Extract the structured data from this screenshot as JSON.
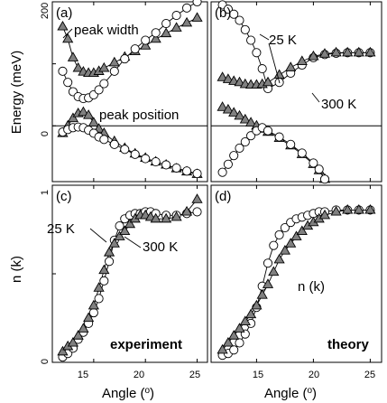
{
  "chart_data": [
    {
      "id": "a",
      "type": "scatter",
      "panel_label": "(a)",
      "ylabel": "Energy (meV)",
      "xlim": [
        11,
        26
      ],
      "ylim": [
        -90,
        200
      ],
      "yticks": [
        0,
        200
      ],
      "annotations": [
        "peak width",
        "peak position"
      ],
      "series": [
        {
          "marker": "triangle",
          "color": "#808080",
          "role": "width",
          "x": [
            12.0,
            12.5,
            13.0,
            13.5,
            14.0,
            14.5,
            15.0,
            15.5,
            16.0,
            17.0,
            18.0,
            19.0,
            20.0,
            21.0,
            22.0,
            23.0,
            24.0,
            25.0
          ],
          "y": [
            160,
            140,
            110,
            93,
            87,
            85,
            85,
            88,
            93,
            102,
            111,
            120,
            129,
            140,
            149,
            158,
            166,
            174
          ]
        },
        {
          "marker": "circle",
          "color": "#ffffff",
          "x": [
            12.0,
            12.5,
            13.0,
            13.5,
            14.0,
            14.5,
            15.0,
            15.5,
            16.0,
            17.0,
            18.0,
            19.0,
            20.0,
            21.0,
            22.0,
            23.0,
            24.0,
            25.0
          ],
          "y": [
            88,
            70,
            55,
            47,
            44,
            45,
            50,
            58,
            68,
            88,
            108,
            124,
            138,
            150,
            165,
            178,
            190,
            200
          ]
        },
        {
          "marker": "triangle",
          "color": "#808080",
          "role": "position",
          "x": [
            12.0,
            12.5,
            13.0,
            13.5,
            14.0,
            14.5,
            15.0,
            15.5,
            16.0,
            17.0,
            18.0,
            19.0,
            20.0,
            21.0,
            22.0,
            23.0,
            24.0,
            25.0
          ],
          "y": [
            -12,
            0,
            12,
            20,
            22,
            17,
            5,
            -5,
            -12,
            -25,
            -36,
            -45,
            -52,
            -58,
            -63,
            -69,
            -74,
            -78
          ]
        },
        {
          "marker": "circle",
          "color": "#ffffff",
          "x": [
            12.0,
            12.5,
            13.0,
            13.5,
            14.0,
            14.5,
            15.0,
            15.5,
            16.0,
            17.0,
            18.0,
            19.0,
            20.0,
            21.0,
            22.0,
            23.0,
            24.0,
            25.0
          ],
          "y": [
            -10,
            -6,
            -3,
            -2,
            -3,
            -7,
            -12,
            -18,
            -22,
            -30,
            -38,
            -46,
            -53,
            -58,
            -63,
            -68,
            -73,
            -77
          ]
        }
      ]
    },
    {
      "id": "b",
      "type": "scatter",
      "panel_label": "(b)",
      "xlim": [
        11,
        26
      ],
      "ylim": [
        -90,
        200
      ],
      "annotations": [
        "25 K",
        "300 K"
      ],
      "series": [
        {
          "marker": "circle",
          "color": "#ffffff",
          "name": "25 K",
          "x": [
            12.0,
            12.5,
            13.0,
            13.5,
            14.0,
            14.5,
            15.0,
            15.5,
            16.0,
            17.0,
            18.0,
            19.0,
            20.0,
            21.0,
            22.0,
            23.0,
            24.0,
            25.0
          ],
          "y": [
            195,
            188,
            180,
            170,
            155,
            138,
            118,
            92,
            60,
            70,
            85,
            98,
            110,
            115,
            117,
            118,
            118,
            118
          ]
        },
        {
          "marker": "triangle",
          "color": "#808080",
          "name": "300 K",
          "x": [
            12.0,
            12.5,
            13.0,
            13.5,
            14.0,
            14.5,
            15.0,
            15.5,
            16.0,
            17.0,
            18.0,
            19.0,
            20.0,
            21.0,
            22.0,
            23.0,
            24.0,
            25.0
          ],
          "y": [
            78,
            75,
            72,
            70,
            67,
            66,
            66,
            67,
            70,
            82,
            94,
            104,
            112,
            116,
            118,
            118,
            118,
            118
          ]
        },
        {
          "marker": "triangle",
          "color": "#808080",
          "x": [
            12.0,
            12.5,
            13.0,
            13.5,
            14.0,
            14.5,
            15.0,
            15.5,
            16.0,
            17.0,
            18.0,
            19.0,
            20.0,
            20.5,
            21.0
          ],
          "y": [
            30,
            26,
            21,
            16,
            10,
            5,
            0,
            -5,
            -10,
            -20,
            -32,
            -46,
            -62,
            -72,
            -86
          ]
        },
        {
          "marker": "circle",
          "color": "#ffffff",
          "x": [
            12.0,
            12.5,
            13.0,
            13.5,
            14.0,
            14.5,
            15.0,
            15.5,
            16.0,
            17.0,
            18.0,
            19.0,
            20.0,
            20.5,
            21.0
          ],
          "y": [
            -75,
            -62,
            -48,
            -36,
            -26,
            -16,
            -8,
            -3,
            -8,
            -18,
            -30,
            -44,
            -60,
            -70,
            -86
          ]
        }
      ]
    },
    {
      "id": "c",
      "type": "scatter",
      "panel_label": "(c)",
      "ylabel": "n (k)",
      "xlabel": "Angle (o)",
      "xlim": [
        11,
        26
      ],
      "ylim": [
        0,
        1
      ],
      "xticks": [
        15,
        20,
        25
      ],
      "yticks": [
        0,
        1
      ],
      "annotations": [
        "25 K",
        "300 K",
        "experiment"
      ],
      "series": [
        {
          "marker": "circle",
          "color": "#ffffff",
          "name": "25 K",
          "x": [
            12.0,
            12.5,
            13.0,
            13.5,
            14.0,
            14.5,
            15.0,
            15.5,
            16.0,
            16.5,
            17.0,
            17.5,
            18.0,
            18.5,
            19.0,
            19.5,
            20.0,
            20.5,
            21.0,
            22.0,
            23.0,
            24.0,
            25.0
          ],
          "y": [
            0.03,
            0.05,
            0.08,
            0.13,
            0.17,
            0.22,
            0.28,
            0.36,
            0.46,
            0.57,
            0.69,
            0.77,
            0.81,
            0.83,
            0.84,
            0.84,
            0.85,
            0.85,
            0.84,
            0.83,
            0.83,
            0.84,
            0.85
          ]
        },
        {
          "marker": "triangle",
          "color": "#808080",
          "name": "300 K",
          "x": [
            12.0,
            12.5,
            13.0,
            13.5,
            14.0,
            14.5,
            15.0,
            15.5,
            16.0,
            16.5,
            17.0,
            17.5,
            18.0,
            18.5,
            19.0,
            19.5,
            20.0,
            20.5,
            21.0,
            22.0,
            23.0,
            24.0,
            25.0
          ],
          "y": [
            0.06,
            0.09,
            0.11,
            0.15,
            0.19,
            0.25,
            0.32,
            0.42,
            0.52,
            0.62,
            0.67,
            0.71,
            0.74,
            0.78,
            0.81,
            0.83,
            0.83,
            0.82,
            0.81,
            0.81,
            0.82,
            0.85,
            0.92
          ]
        }
      ]
    },
    {
      "id": "d",
      "type": "scatter",
      "panel_label": "(d)",
      "xlabel": "Angle (o)",
      "xlim": [
        11,
        26
      ],
      "ylim": [
        0,
        1
      ],
      "xticks": [
        15,
        20,
        25
      ],
      "annotations": [
        "n (k)",
        "theory"
      ],
      "series": [
        {
          "marker": "circle",
          "color": "#ffffff",
          "x": [
            12.0,
            12.5,
            13.0,
            13.5,
            14.0,
            14.5,
            15.0,
            15.5,
            16.0,
            16.5,
            17.0,
            17.5,
            18.0,
            18.5,
            19.0,
            19.5,
            20.0,
            20.5,
            21.0,
            22.0,
            23.0,
            24.0,
            25.0
          ],
          "y": [
            0.04,
            0.05,
            0.07,
            0.11,
            0.16,
            0.22,
            0.31,
            0.43,
            0.56,
            0.66,
            0.72,
            0.76,
            0.79,
            0.81,
            0.82,
            0.83,
            0.84,
            0.85,
            0.85,
            0.86,
            0.86,
            0.86,
            0.86
          ]
        },
        {
          "marker": "triangle",
          "color": "#808080",
          "x": [
            12.0,
            12.5,
            13.0,
            13.5,
            14.0,
            14.5,
            15.0,
            15.5,
            16.0,
            16.5,
            17.0,
            17.5,
            18.0,
            18.5,
            19.0,
            19.5,
            20.0,
            20.5,
            21.0,
            22.0,
            23.0,
            24.0,
            25.0
          ],
          "y": [
            0.07,
            0.11,
            0.15,
            0.19,
            0.23,
            0.27,
            0.32,
            0.38,
            0.44,
            0.51,
            0.58,
            0.63,
            0.67,
            0.71,
            0.74,
            0.77,
            0.79,
            0.81,
            0.83,
            0.85,
            0.86,
            0.86,
            0.86
          ]
        }
      ]
    }
  ]
}
